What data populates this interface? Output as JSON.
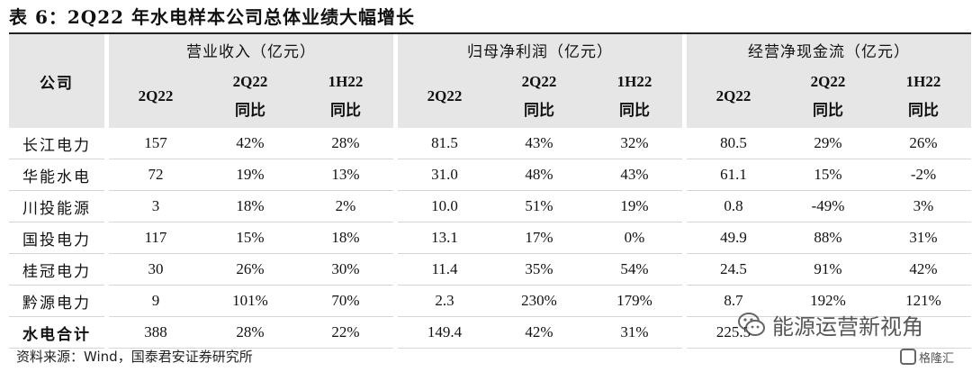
{
  "title": "表 6：2Q22 年水电样本公司总体业绩大幅增长",
  "table": {
    "corner": "公司",
    "groups": [
      "营业收入（亿元）",
      "归母净利润（亿元）",
      "经营净现金流（亿元）"
    ],
    "sub": [
      {
        "l1": "2Q22",
        "l2": ""
      },
      {
        "l1": "2Q22",
        "l2": "同比"
      },
      {
        "l1": "1H22",
        "l2": "同比"
      }
    ],
    "rows": [
      {
        "name": "长江电力",
        "v": [
          "157",
          "42%",
          "28%",
          "81.5",
          "43%",
          "32%",
          "80.5",
          "29%",
          "26%"
        ]
      },
      {
        "name": "华能水电",
        "v": [
          "72",
          "19%",
          "13%",
          "31.0",
          "48%",
          "43%",
          "61.1",
          "15%",
          "-2%"
        ]
      },
      {
        "name": "川投能源",
        "v": [
          "3",
          "18%",
          "2%",
          "10.0",
          "51%",
          "19%",
          "0.8",
          "-49%",
          "3%"
        ]
      },
      {
        "name": "国投电力",
        "v": [
          "117",
          "15%",
          "18%",
          "13.1",
          "17%",
          "0%",
          "49.9",
          "88%",
          "31%"
        ]
      },
      {
        "name": "桂冠电力",
        "v": [
          "30",
          "26%",
          "30%",
          "11.4",
          "35%",
          "54%",
          "24.5",
          "91%",
          "42%"
        ]
      },
      {
        "name": "黔源电力",
        "v": [
          "9",
          "101%",
          "70%",
          "2.3",
          "230%",
          "179%",
          "8.7",
          "192%",
          "121%"
        ]
      },
      {
        "name": "水电合计",
        "v": [
          "388",
          "28%",
          "22%",
          "149.4",
          "42%",
          "31%",
          "225.5",
          "",
          ""
        ]
      }
    ]
  },
  "source": "资料来源：Wind，国泰君安证券研究所",
  "watermark": {
    "text": "能源运营新视角",
    "icon": "wechat-icon"
  },
  "badge": {
    "text": "格隆汇",
    "icon": "gelonghui-logo-icon"
  }
}
